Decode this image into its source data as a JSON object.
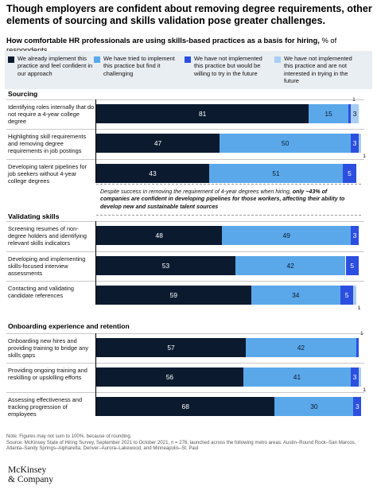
{
  "title": "Though employers are confident about removing degree requirements, other elements of sourcing and skills validation pose greater challenges.",
  "subtitle_bold": "How comfortable HR professionals are using skills-based practices as a basis for hiring,",
  "subtitle_rest": " % of respondents",
  "legend": [
    {
      "label": "We already implement this practice and feel confident in our approach",
      "color": "#0b1a2f"
    },
    {
      "label": "We have tried to implement this practice but find it challenging",
      "color": "#5aa8ea"
    },
    {
      "label": "We have not implemented this practice but would be willing to try in the future",
      "color": "#2c4fe0"
    },
    {
      "label": "We have not implemented this practice and are not interested in trying in the future",
      "color": "#a9cdf3"
    }
  ],
  "callout": {
    "italic_1": "Despite success in removing the requirement of 4-year degrees when hiring, ",
    "bold": "only ~43% of companies are confident in developing pipelines for those workers, affecting their ability to develop new and sustainable talent sources",
    "italic_2": ""
  },
  "chart_data": {
    "type": "bar",
    "orientation": "horizontal-stacked",
    "series_names": [
      "We already implement this practice and feel confident in our approach",
      "We have tried to implement this practice but find it challenging",
      "We have not implemented this practice but would be willing to try in the future",
      "We have not implemented this practice and are not interested in trying in the future"
    ],
    "xlim": [
      0,
      100
    ],
    "sections": [
      {
        "name": "Sourcing",
        "rows": [
          {
            "label": "Identifying roles internally that do not require a 4-year college degree",
            "values": [
              81,
              15,
              1,
              3
            ]
          },
          {
            "label": "Highlighting skill requirements and removing degree requirements in job postings",
            "values": [
              47,
              50,
              3,
              1
            ]
          },
          {
            "label": "Developing talent pipelines for job seekers without 4-year college degrees",
            "values": [
              43,
              51,
              5,
              0
            ]
          }
        ]
      },
      {
        "name": "Validating skills",
        "rows": [
          {
            "label": "Screening resumes of non-degree holders and identifying relevant skills indicators",
            "values": [
              48,
              49,
              3,
              0
            ]
          },
          {
            "label": "Developing and implementing skills-focused interview assessments",
            "values": [
              53,
              42,
              5,
              0
            ]
          },
          {
            "label": "Contacting and validating candidate references",
            "values": [
              59,
              34,
              5,
              1
            ]
          }
        ]
      },
      {
        "name": "Onboarding experience and retention",
        "rows": [
          {
            "label": "Onboarding new hires and providing training to bridge any skills gaps",
            "values": [
              57,
              42,
              1,
              0
            ]
          },
          {
            "label": "Providing ongoing training and reskilling or upskilling efforts",
            "values": [
              56,
              41,
              3,
              1
            ]
          },
          {
            "label": "Assessing effectiveness and tracking progression of employees",
            "values": [
              68,
              30,
              3,
              0
            ]
          }
        ]
      }
    ]
  },
  "footnote": "Note: Figures may not sum to 100%, because of rounding.\nSource: McKinsey State of Hiring Survey, September 2021 to October 2021, n = 276, launched across the following metro areas: Austin–Round Rock–San Marcos, Atlanta–Sandy Springs–Alpharetta, Denver–Aurora–Lakewood, and Minneapolis–St. Paul",
  "logo_line1": "McKinsey",
  "logo_line2": "& Company"
}
